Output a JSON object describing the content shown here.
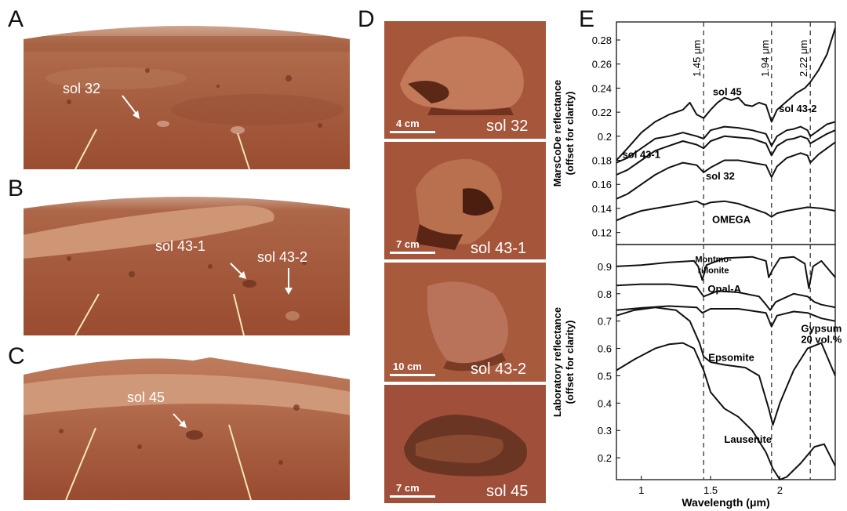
{
  "panels": {
    "A": {
      "letter": "A",
      "label": "sol 32"
    },
    "B": {
      "letter": "B",
      "label1": "sol 43-1",
      "label2": "sol 43-2"
    },
    "C": {
      "letter": "C",
      "label": "sol 45"
    },
    "D": {
      "letter": "D",
      "thumbs": [
        {
          "scale": "4 cm",
          "label": "sol 32"
        },
        {
          "scale": "7 cm",
          "label": "sol 43-1"
        },
        {
          "scale": "10 cm",
          "label": "sol 43-2"
        },
        {
          "scale": "7 cm",
          "label": "sol 45"
        }
      ]
    },
    "E": {
      "letter": "E"
    }
  },
  "colors": {
    "mars": "#a8573a",
    "sky": "#d9b7a3",
    "dune": "#c98a66"
  },
  "chart_data": [
    {
      "type": "line",
      "ylabel_line1": "MarsCoDe reflectance",
      "ylabel_line2": "(offset for clarity)",
      "xlim": [
        0.82,
        2.4
      ],
      "ylim": [
        0.11,
        0.295
      ],
      "yticks": [
        "0.12",
        "0.14",
        "0.16",
        "0.18",
        "0.2",
        "0.22",
        "0.24",
        "0.26",
        "0.28"
      ],
      "markers": [
        {
          "x": 1.45,
          "label": "1.45 μm"
        },
        {
          "x": 1.94,
          "label": "1.94 μm"
        },
        {
          "x": 2.22,
          "label": "2.22 μm"
        }
      ],
      "series": [
        {
          "name": "sol 45",
          "label_x": 1.62,
          "label_y": 0.234,
          "x": [
            0.82,
            0.9,
            1.0,
            1.1,
            1.2,
            1.3,
            1.35,
            1.4,
            1.45,
            1.5,
            1.55,
            1.6,
            1.65,
            1.7,
            1.75,
            1.8,
            1.85,
            1.9,
            1.94,
            1.98,
            2.02,
            2.08,
            2.12,
            2.18,
            2.22,
            2.28,
            2.34,
            2.4
          ],
          "y": [
            0.18,
            0.19,
            0.203,
            0.212,
            0.218,
            0.222,
            0.228,
            0.218,
            0.215,
            0.222,
            0.228,
            0.232,
            0.23,
            0.232,
            0.226,
            0.225,
            0.228,
            0.226,
            0.212,
            0.222,
            0.226,
            0.232,
            0.236,
            0.24,
            0.245,
            0.255,
            0.268,
            0.29
          ]
        },
        {
          "name": "sol 43-2",
          "label_x": 2.13,
          "label_y": 0.22,
          "x": [
            0.82,
            0.9,
            1.0,
            1.1,
            1.2,
            1.3,
            1.4,
            1.45,
            1.5,
            1.6,
            1.7,
            1.8,
            1.9,
            1.94,
            1.98,
            2.05,
            2.1,
            2.15,
            2.2,
            2.22,
            2.28,
            2.34,
            2.4
          ],
          "y": [
            0.178,
            0.182,
            0.19,
            0.198,
            0.2,
            0.203,
            0.2,
            0.198,
            0.205,
            0.208,
            0.207,
            0.205,
            0.202,
            0.192,
            0.2,
            0.205,
            0.206,
            0.208,
            0.205,
            0.2,
            0.205,
            0.21,
            0.212
          ]
        },
        {
          "name": "sol 43-1",
          "label_x": 1.0,
          "label_y": 0.182,
          "x": [
            0.82,
            0.9,
            1.0,
            1.1,
            1.2,
            1.3,
            1.4,
            1.45,
            1.5,
            1.6,
            1.7,
            1.8,
            1.9,
            1.94,
            1.98,
            2.05,
            2.1,
            2.15,
            2.2,
            2.22,
            2.28,
            2.34,
            2.4
          ],
          "y": [
            0.168,
            0.172,
            0.18,
            0.188,
            0.192,
            0.196,
            0.193,
            0.19,
            0.196,
            0.2,
            0.199,
            0.198,
            0.194,
            0.184,
            0.192,
            0.197,
            0.198,
            0.2,
            0.198,
            0.194,
            0.198,
            0.202,
            0.205
          ]
        },
        {
          "name": "sol 32",
          "label_x": 1.57,
          "label_y": 0.164,
          "x": [
            0.82,
            0.9,
            1.0,
            1.1,
            1.2,
            1.3,
            1.4,
            1.45,
            1.5,
            1.6,
            1.7,
            1.8,
            1.9,
            1.94,
            1.98,
            2.05,
            2.1,
            2.15,
            2.2,
            2.22,
            2.28,
            2.34,
            2.4
          ],
          "y": [
            0.148,
            0.152,
            0.16,
            0.168,
            0.174,
            0.178,
            0.176,
            0.17,
            0.174,
            0.18,
            0.18,
            0.178,
            0.176,
            0.166,
            0.175,
            0.182,
            0.184,
            0.186,
            0.184,
            0.178,
            0.185,
            0.19,
            0.195
          ]
        },
        {
          "name": "OMEGA",
          "label_x": 1.65,
          "label_y": 0.128,
          "x": [
            0.82,
            0.9,
            1.0,
            1.1,
            1.2,
            1.3,
            1.4,
            1.45,
            1.5,
            1.6,
            1.7,
            1.8,
            1.9,
            1.94,
            1.98,
            2.05,
            2.1,
            2.2,
            2.3,
            2.4
          ],
          "y": [
            0.13,
            0.134,
            0.138,
            0.14,
            0.142,
            0.144,
            0.146,
            0.143,
            0.145,
            0.146,
            0.144,
            0.14,
            0.136,
            0.133,
            0.136,
            0.138,
            0.139,
            0.141,
            0.14,
            0.138
          ]
        }
      ]
    },
    {
      "type": "line",
      "ylabel_line1": "Laboratory reflectance",
      "ylabel_line2": "(offset for clarity)",
      "xlabel": "Wavelength (μm)",
      "xlim": [
        0.82,
        2.4
      ],
      "ylim": [
        0.12,
        0.98
      ],
      "xticks": [
        "1",
        "1.5",
        "2"
      ],
      "yticks": [
        "0.2",
        "0.3",
        "0.4",
        "0.5",
        "0.6",
        "0.7",
        "0.8",
        "0.9"
      ],
      "markers": [
        {
          "x": 1.45
        },
        {
          "x": 1.94
        },
        {
          "x": 2.22
        }
      ],
      "series": [
        {
          "name": "Montmo-rillonite",
          "label_lines": [
            "Montmo-",
            "rillonite"
          ],
          "label_x": 1.52,
          "label_y": 0.915,
          "x": [
            0.82,
            1.0,
            1.2,
            1.38,
            1.41,
            1.44,
            1.47,
            1.6,
            1.8,
            1.9,
            1.92,
            1.95,
            2.0,
            2.1,
            2.18,
            2.21,
            2.24,
            2.3,
            2.4
          ],
          "y": [
            0.9,
            0.905,
            0.915,
            0.92,
            0.9,
            0.85,
            0.905,
            0.93,
            0.935,
            0.92,
            0.86,
            0.89,
            0.93,
            0.935,
            0.91,
            0.82,
            0.9,
            0.92,
            0.86
          ]
        },
        {
          "name": "Opal-A",
          "label_x": 1.6,
          "label_y": 0.805,
          "x": [
            0.82,
            1.0,
            1.2,
            1.4,
            1.45,
            1.55,
            1.7,
            1.85,
            1.9,
            1.93,
            1.97,
            2.1,
            2.2,
            2.25,
            2.3,
            2.4
          ],
          "y": [
            0.83,
            0.835,
            0.835,
            0.825,
            0.79,
            0.81,
            0.805,
            0.79,
            0.76,
            0.74,
            0.77,
            0.8,
            0.79,
            0.77,
            0.76,
            0.75
          ]
        },
        {
          "name": "Gypsum 20 vol.%",
          "label_lines": [
            "Gypsum",
            "20 vol.%"
          ],
          "label_x": 2.3,
          "label_y": 0.66,
          "x": [
            0.82,
            1.0,
            1.2,
            1.4,
            1.44,
            1.5,
            1.7,
            1.9,
            1.94,
            1.98,
            2.1,
            2.2,
            2.3,
            2.4
          ],
          "y": [
            0.74,
            0.748,
            0.755,
            0.75,
            0.73,
            0.745,
            0.745,
            0.73,
            0.68,
            0.72,
            0.735,
            0.73,
            0.71,
            0.7
          ]
        },
        {
          "name": "Epsomite",
          "label_x": 1.65,
          "label_y": 0.555,
          "x": [
            0.82,
            0.95,
            1.1,
            1.25,
            1.35,
            1.42,
            1.45,
            1.5,
            1.6,
            1.75,
            1.85,
            1.92,
            1.95,
            2.0,
            2.1,
            2.2,
            2.3,
            2.4
          ],
          "y": [
            0.72,
            0.74,
            0.75,
            0.74,
            0.7,
            0.62,
            0.57,
            0.55,
            0.54,
            0.53,
            0.5,
            0.38,
            0.32,
            0.4,
            0.52,
            0.6,
            0.62,
            0.5
          ]
        },
        {
          "name": "Lausenite",
          "label_x": 1.77,
          "label_y": 0.255,
          "x": [
            0.82,
            0.95,
            1.1,
            1.2,
            1.3,
            1.38,
            1.45,
            1.5,
            1.6,
            1.7,
            1.8,
            1.9,
            1.95,
            2.0,
            2.05,
            2.15,
            2.25,
            2.32,
            2.4
          ],
          "y": [
            0.52,
            0.56,
            0.6,
            0.615,
            0.62,
            0.6,
            0.52,
            0.44,
            0.38,
            0.35,
            0.3,
            0.22,
            0.16,
            0.12,
            0.13,
            0.18,
            0.24,
            0.25,
            0.17
          ]
        }
      ]
    }
  ]
}
